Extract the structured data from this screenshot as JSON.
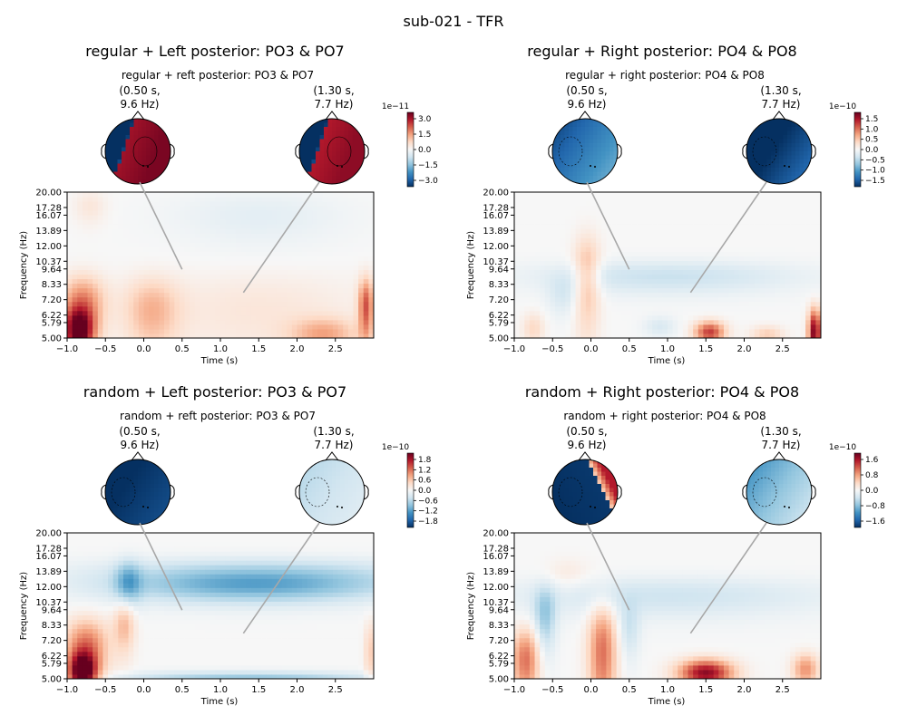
{
  "figure": {
    "title": "sub-021 - TFR"
  },
  "colormap": {
    "negative": "#053061",
    "mid": "#f7f7f7",
    "positive": "#67001f"
  },
  "chart_data": [
    {
      "type": "heatmap",
      "title": "regular + Left posterior: PO3 & PO7",
      "subtitle": "regular + reft posterior: PO3 & PO7",
      "xlabel": "Time (s)",
      "ylabel": "Frequency (Hz)",
      "xlim": [
        -1.0,
        3.0
      ],
      "ylim": [
        5.0,
        20.0
      ],
      "yscale": "log",
      "xticks": [
        "−1.0",
        "−0.5",
        "0.0",
        "0.5",
        "1.0",
        "1.5",
        "2.0",
        "2.5"
      ],
      "yticks": [
        "5.00",
        "5.79",
        "6.22",
        "7.20",
        "8.33",
        "9.64",
        "10.37",
        "12.00",
        "13.89",
        "16.07",
        "17.28",
        "20.00"
      ],
      "topomaps": [
        {
          "label": "(0.50 s,\n9.6 Hz)",
          "time": 0.5,
          "freq": 9.6
        },
        {
          "label": "(1.30 s,\n7.7 Hz)",
          "time": 1.3,
          "freq": 7.7
        }
      ],
      "colorbar": {
        "exponent": "1e−11",
        "ticks": [
          "3.0",
          "1.5",
          "0.0",
          "−1.5",
          "−3.0"
        ]
      }
    },
    {
      "type": "heatmap",
      "title": "regular + Right posterior: PO4 & PO8",
      "subtitle": "regular + right posterior: PO4 & PO8",
      "xlabel": "Time (s)",
      "ylabel": "Frequency (Hz)",
      "xlim": [
        -1.0,
        3.0
      ],
      "ylim": [
        5.0,
        20.0
      ],
      "yscale": "log",
      "xticks": [
        "−1.0",
        "−0.5",
        "0.0",
        "0.5",
        "1.0",
        "1.5",
        "2.0",
        "2.5"
      ],
      "yticks": [
        "5.00",
        "5.79",
        "6.22",
        "7.20",
        "8.33",
        "9.64",
        "10.37",
        "12.00",
        "13.89",
        "16.07",
        "17.28",
        "20.00"
      ],
      "topomaps": [
        {
          "label": "(0.50 s,\n9.6 Hz)",
          "time": 0.5,
          "freq": 9.6
        },
        {
          "label": "(1.30 s,\n7.7 Hz)",
          "time": 1.3,
          "freq": 7.7
        }
      ],
      "colorbar": {
        "exponent": "1e−10",
        "ticks": [
          "1.5",
          "1.0",
          "0.5",
          "0.0",
          "−0.5",
          "−1.0",
          "−1.5"
        ]
      }
    },
    {
      "type": "heatmap",
      "title": "random + Left posterior: PO3 & PO7",
      "subtitle": "random + reft posterior: PO3 & PO7",
      "xlabel": "Time (s)",
      "ylabel": "Frequency (Hz)",
      "xlim": [
        -1.0,
        3.0
      ],
      "ylim": [
        5.0,
        20.0
      ],
      "yscale": "log",
      "xticks": [
        "−1.0",
        "−0.5",
        "0.0",
        "0.5",
        "1.0",
        "1.5",
        "2.0",
        "2.5"
      ],
      "yticks": [
        "5.00",
        "5.79",
        "6.22",
        "7.20",
        "8.33",
        "9.64",
        "10.37",
        "12.00",
        "13.89",
        "16.07",
        "17.28",
        "20.00"
      ],
      "topomaps": [
        {
          "label": "(0.50 s,\n9.6 Hz)",
          "time": 0.5,
          "freq": 9.6
        },
        {
          "label": "(1.30 s,\n7.7 Hz)",
          "time": 1.3,
          "freq": 7.7
        }
      ],
      "colorbar": {
        "exponent": "1e−10",
        "ticks": [
          "1.8",
          "1.2",
          "0.6",
          "0.0",
          "−0.6",
          "−1.2",
          "−1.8"
        ]
      }
    },
    {
      "type": "heatmap",
      "title": "random + Right posterior: PO4 & PO8",
      "subtitle": "random + right posterior: PO4 & PO8",
      "xlabel": "Time (s)",
      "ylabel": "Frequency (Hz)",
      "xlim": [
        -1.0,
        3.0
      ],
      "ylim": [
        5.0,
        20.0
      ],
      "yscale": "log",
      "xticks": [
        "−1.0",
        "−0.5",
        "0.0",
        "0.5",
        "1.0",
        "1.5",
        "2.0",
        "2.5"
      ],
      "yticks": [
        "5.00",
        "5.79",
        "6.22",
        "7.20",
        "8.33",
        "9.64",
        "10.37",
        "12.00",
        "13.89",
        "16.07",
        "17.28",
        "20.00"
      ],
      "topomaps": [
        {
          "label": "(0.50 s,\n9.6 Hz)",
          "time": 0.5,
          "freq": 9.6
        },
        {
          "label": "(1.30 s,\n7.7 Hz)",
          "time": 1.3,
          "freq": 7.7
        }
      ],
      "colorbar": {
        "exponent": "1e−10",
        "ticks": [
          "1.6",
          "0.8",
          "0.0",
          "−0.8",
          "−1.6"
        ]
      }
    }
  ]
}
